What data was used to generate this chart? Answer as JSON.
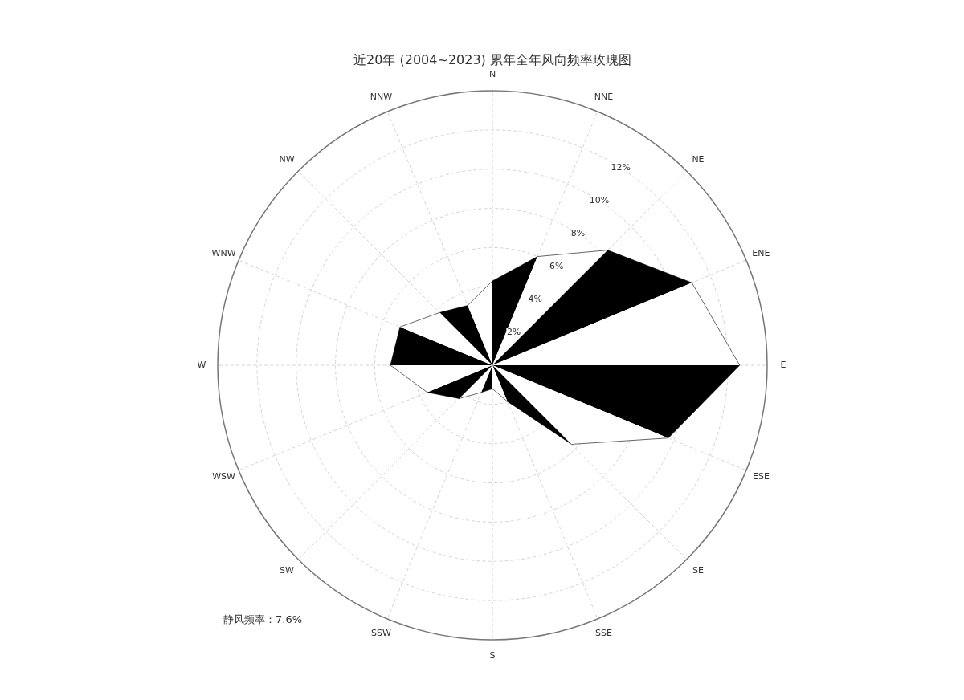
{
  "chart_data": {
    "type": "radar",
    "title": "近20年 (2004~2023) 累年全年风向频率玫瑰图",
    "categories": [
      "N",
      "NNE",
      "NE",
      "ENE",
      "E",
      "ESE",
      "SE",
      "SSE",
      "S",
      "SSW",
      "SW",
      "WSW",
      "W",
      "WNW",
      "NW",
      "NNW"
    ],
    "series": [
      {
        "color": "#000000",
        "values": [
          4.3,
          6.0,
          8.3,
          11.0,
          12.6,
          9.7,
          5.7,
          2.0,
          1.2,
          1.5,
          2.4,
          3.6,
          5.2,
          5.1,
          3.8,
          3.3
        ]
      }
    ],
    "ylim": [
      0,
      14
    ],
    "yticks": [
      {
        "value": 2,
        "label": "2%"
      },
      {
        "value": 4,
        "label": "4%"
      },
      {
        "value": 6,
        "label": "6%"
      },
      {
        "value": 8,
        "label": "8%"
      },
      {
        "value": 10,
        "label": "10%"
      },
      {
        "value": 12,
        "label": "12%"
      }
    ],
    "grid": true,
    "annotations": [
      "静风频率：7.6%"
    ]
  }
}
